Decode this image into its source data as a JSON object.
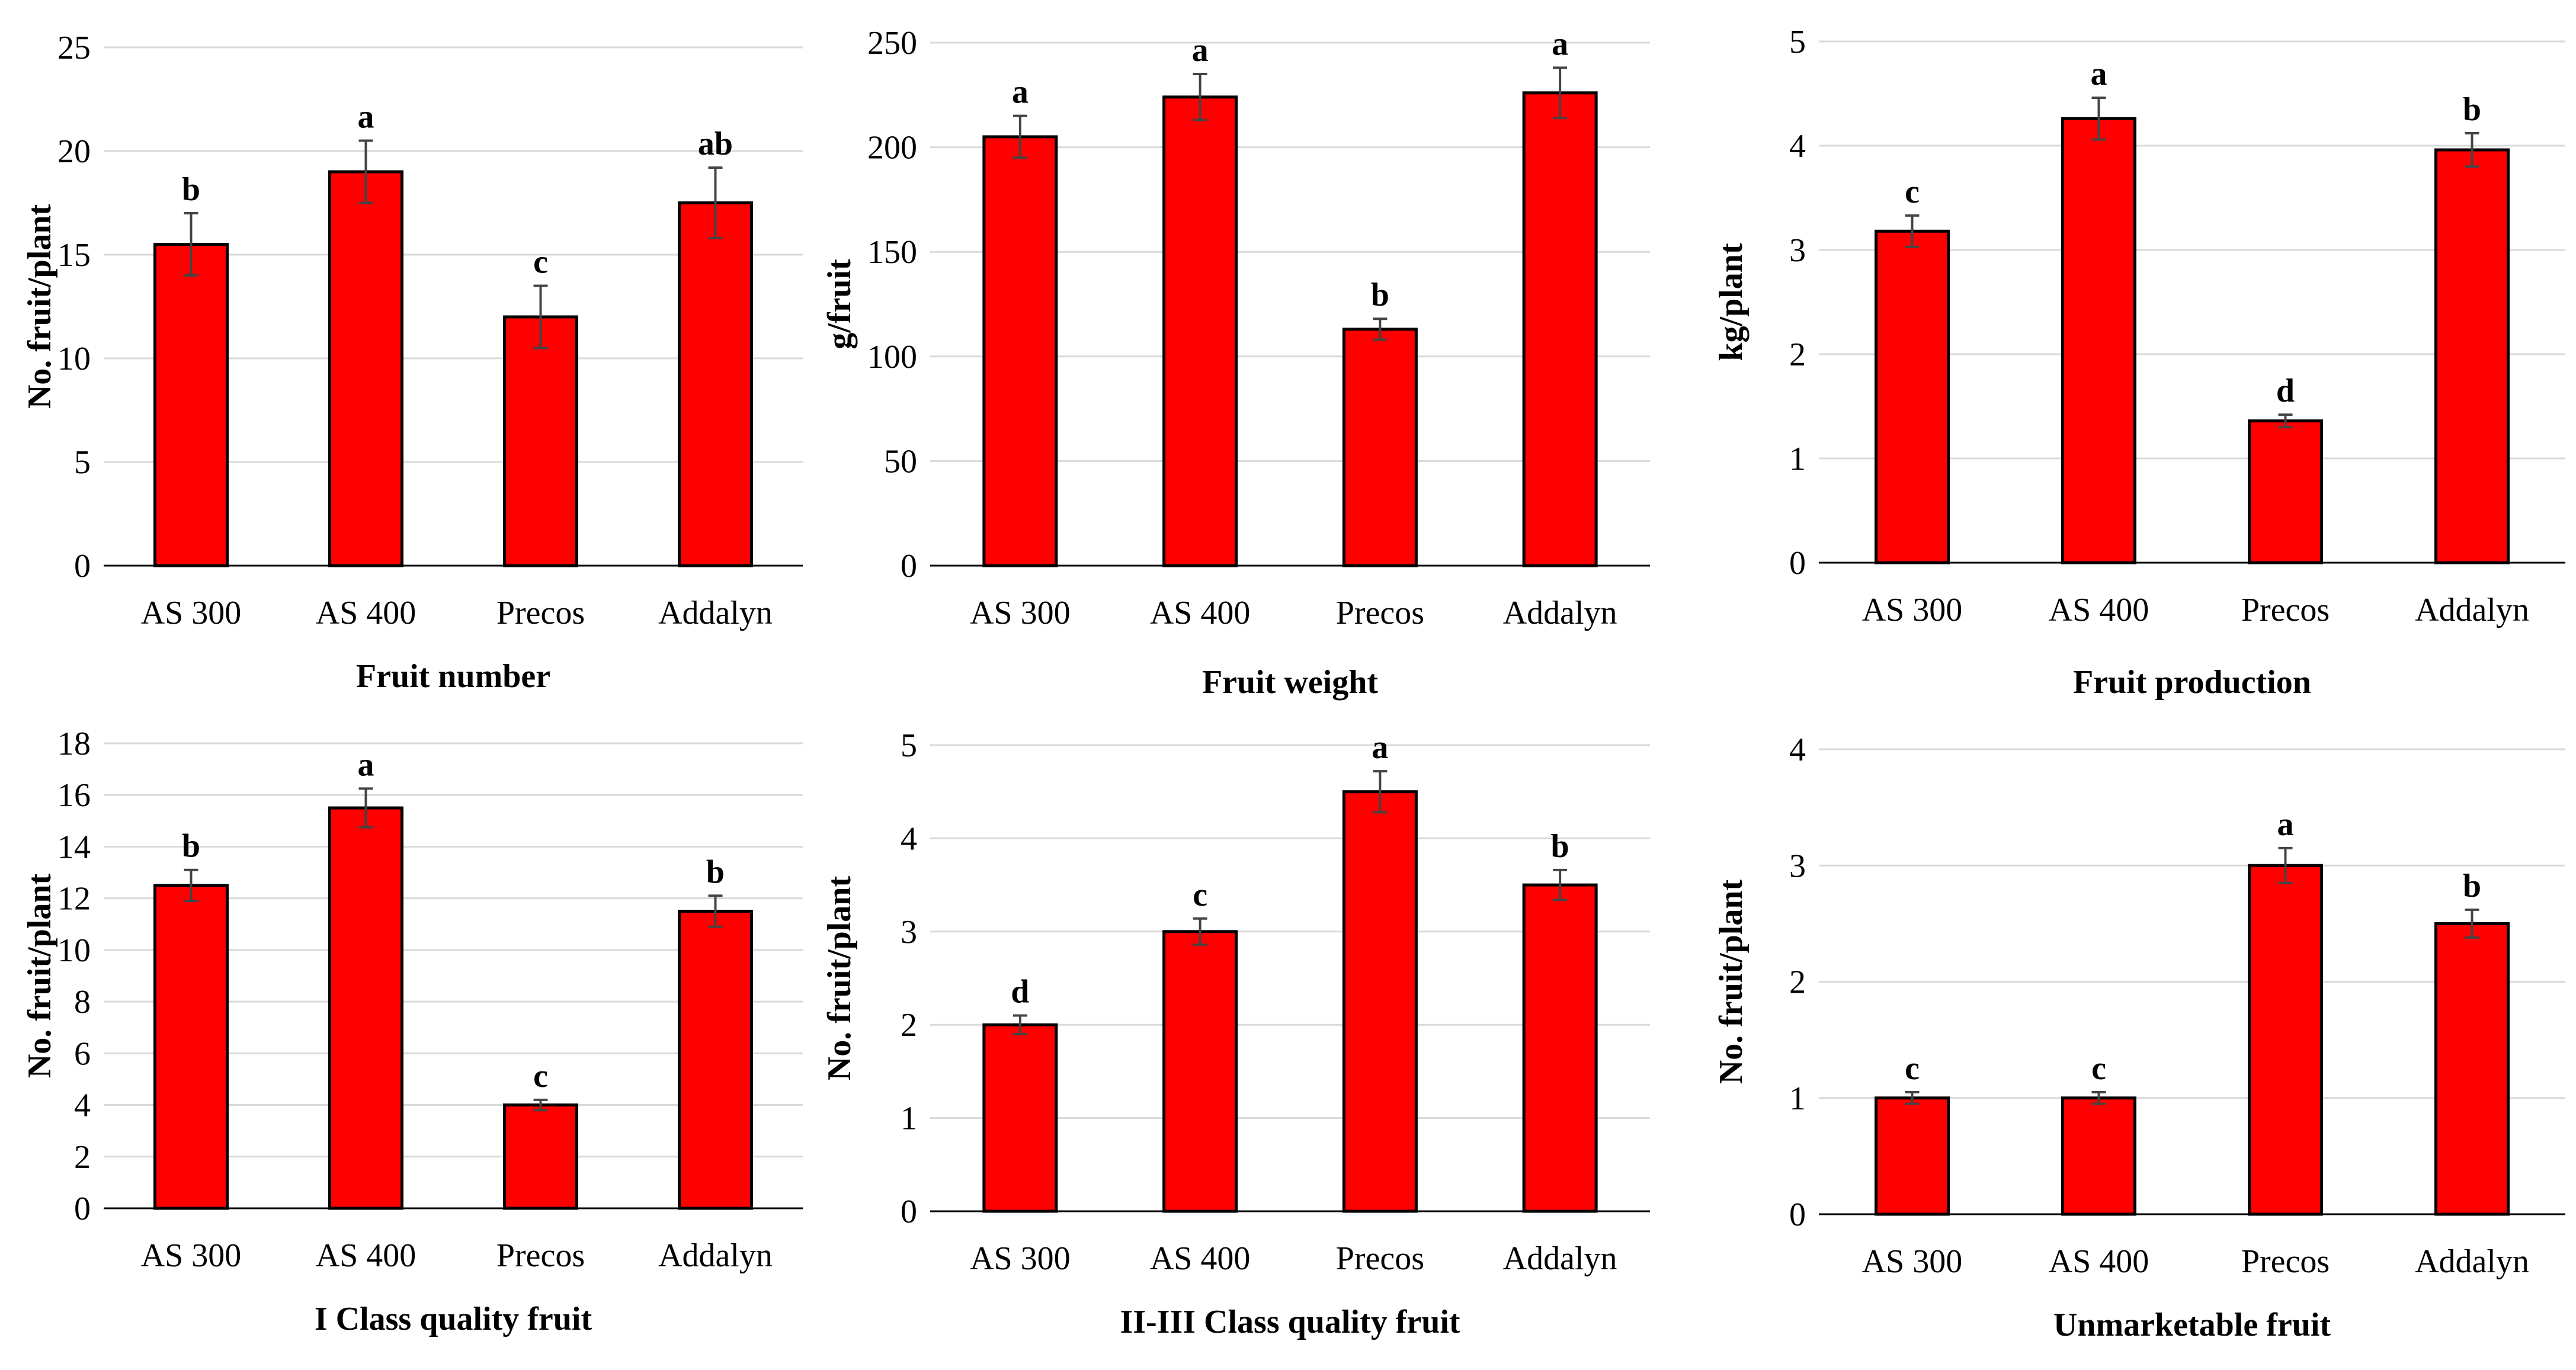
{
  "colors": {
    "bar": "#ff0000",
    "bar_outline": "#000000",
    "grid": "#d9d9d9"
  },
  "chart_data": [
    {
      "type": "bar",
      "title": "Fruit number",
      "ylabel": "No. fruit/plant",
      "categories": [
        "AS 300",
        "AS 400",
        "Precos",
        "Addalyn"
      ],
      "values": [
        15.5,
        19,
        12,
        17.5
      ],
      "errors": [
        1.5,
        1.5,
        1.5,
        1.7
      ],
      "letters": [
        "b",
        "a",
        "c",
        "ab"
      ],
      "ylim": [
        0,
        25
      ],
      "yticks": [
        0,
        5,
        10,
        15,
        20,
        25
      ],
      "ytick_labels": [
        "0",
        "5",
        "10",
        "15",
        "20",
        "25"
      ],
      "grid": true
    },
    {
      "type": "bar",
      "title": "Fruit weight",
      "ylabel": "g/fruit",
      "categories": [
        "AS 300",
        "AS 400",
        "Precos",
        "Addalyn"
      ],
      "values": [
        205,
        224,
        113,
        226
      ],
      "errors": [
        10,
        11,
        5,
        12
      ],
      "letters": [
        "a",
        "a",
        "b",
        "a"
      ],
      "ylim": [
        0,
        250
      ],
      "yticks": [
        0,
        50,
        100,
        150,
        200,
        250
      ],
      "ytick_labels": [
        "0",
        "50",
        "100",
        "150",
        "200",
        "250"
      ],
      "grid": true
    },
    {
      "type": "bar",
      "title": "Fruit production",
      "ylabel": "kg/plant",
      "categories": [
        "AS 300",
        "AS 400",
        "Precos",
        "Addalyn"
      ],
      "values": [
        3.18,
        4.26,
        1.36,
        3.96
      ],
      "errors": [
        0.15,
        0.2,
        0.06,
        0.16
      ],
      "letters": [
        "c",
        "a",
        "d",
        "b"
      ],
      "ylim": [
        0,
        5
      ],
      "yticks": [
        0,
        1,
        2,
        3,
        4,
        5
      ],
      "ytick_labels": [
        "0",
        "1",
        "2",
        "3",
        "4",
        "5"
      ],
      "grid": true
    },
    {
      "type": "bar",
      "title": "I Class quality fruit",
      "ylabel": "No. fruit/plant",
      "categories": [
        "AS 300",
        "AS 400",
        "Precos",
        "Addalyn"
      ],
      "values": [
        12.5,
        15.5,
        4,
        11.5
      ],
      "errors": [
        0.6,
        0.75,
        0.2,
        0.6
      ],
      "letters": [
        "b",
        "a",
        "c",
        "b"
      ],
      "ylim": [
        0,
        18
      ],
      "yticks": [
        0,
        2,
        4,
        6,
        8,
        10,
        12,
        14,
        16,
        18
      ],
      "ytick_labels": [
        "0",
        "2",
        "4",
        "6",
        "8",
        "10",
        "12",
        "14",
        "16",
        "18"
      ],
      "grid": true
    },
    {
      "type": "bar",
      "title": "II-III Class quality fruit",
      "ylabel": "No. fruit/plant",
      "categories": [
        "AS 300",
        "AS 400",
        "Precos",
        "Addalyn"
      ],
      "values": [
        2,
        3,
        4.5,
        3.5
      ],
      "errors": [
        0.1,
        0.14,
        0.22,
        0.16
      ],
      "letters": [
        "d",
        "c",
        "a",
        "b"
      ],
      "ylim": [
        0,
        5
      ],
      "yticks": [
        0,
        1,
        2,
        3,
        4,
        5
      ],
      "ytick_labels": [
        "0",
        "1",
        "2",
        "3",
        "4",
        "5"
      ],
      "grid": true
    },
    {
      "type": "bar",
      "title": "Unmarketable fruit",
      "ylabel": "No. fruit/plant",
      "categories": [
        "AS 300",
        "AS 400",
        "Precos",
        "Addalyn"
      ],
      "values": [
        1,
        1,
        3,
        2.5
      ],
      "errors": [
        0.05,
        0.05,
        0.15,
        0.12
      ],
      "letters": [
        "c",
        "c",
        "a",
        "b"
      ],
      "ylim": [
        0,
        4
      ],
      "yticks": [
        0,
        1,
        2,
        3,
        4
      ],
      "ytick_labels": [
        "0",
        "1",
        "2",
        "3",
        "4"
      ],
      "grid": true
    }
  ]
}
